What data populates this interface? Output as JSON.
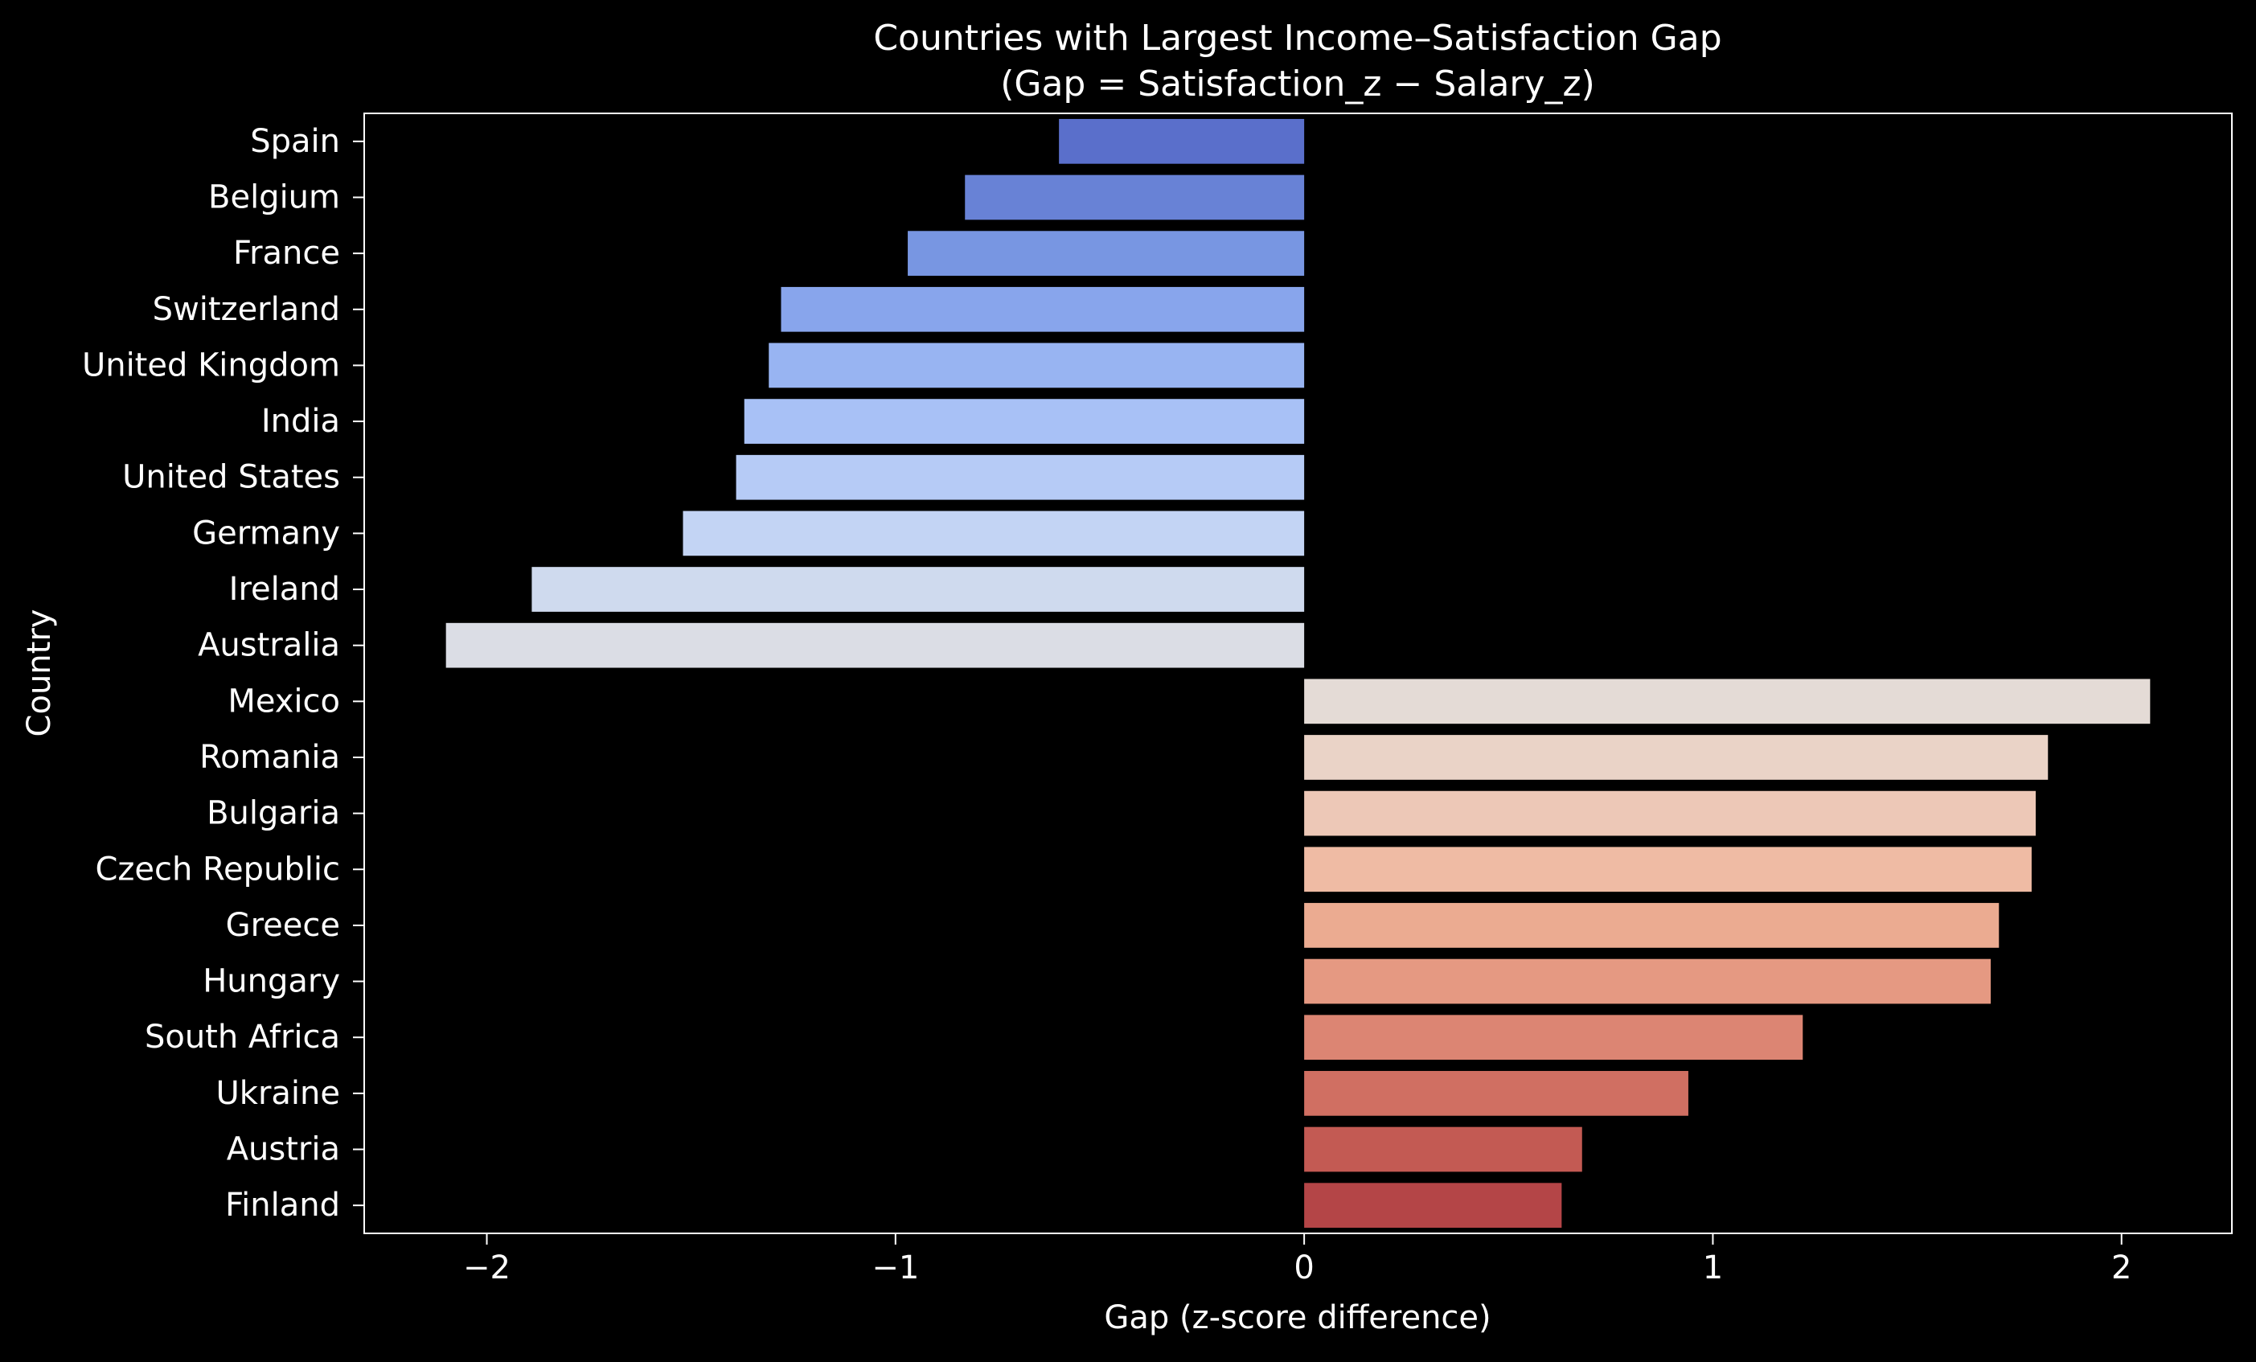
{
  "chart_data": {
    "type": "bar",
    "orientation": "horizontal",
    "title_line1": "Countries with Largest Income–Satisfaction Gap",
    "title_line2": "(Gap = Satisfaction_z − Salary_z)",
    "xlabel": "Gap (z-score difference)",
    "ylabel": "Country",
    "xlim": [
      -2.3,
      2.27
    ],
    "xticks": [
      -2,
      -1,
      0,
      1,
      2
    ],
    "xtick_labels": [
      "−2",
      "−1",
      "0",
      "1",
      "2"
    ],
    "grid": false,
    "legend": "none",
    "background": "#000000",
    "bars": [
      {
        "label": "Spain",
        "value": -0.6,
        "color": "#5a6fcb"
      },
      {
        "label": "Belgium",
        "value": -0.83,
        "color": "#6882d6"
      },
      {
        "label": "France",
        "value": -0.97,
        "color": "#7896e2"
      },
      {
        "label": "Switzerland",
        "value": -1.28,
        "color": "#88a5ec"
      },
      {
        "label": "United Kingdom",
        "value": -1.31,
        "color": "#98b4f2"
      },
      {
        "label": "India",
        "value": -1.37,
        "color": "#a8c1f6"
      },
      {
        "label": "United States",
        "value": -1.39,
        "color": "#b6cbf6"
      },
      {
        "label": "Germany",
        "value": -1.52,
        "color": "#c3d4f4"
      },
      {
        "label": "Ireland",
        "value": -1.89,
        "color": "#cfdaee"
      },
      {
        "label": "Australia",
        "value": -2.1,
        "color": "#dbdde5"
      },
      {
        "label": "Mexico",
        "value": 2.07,
        "color": "#e4dbd6"
      },
      {
        "label": "Romania",
        "value": 1.82,
        "color": "#ead3c7"
      },
      {
        "label": "Bulgaria",
        "value": 1.79,
        "color": "#edc8b7"
      },
      {
        "label": "Czech Republic",
        "value": 1.78,
        "color": "#efbba4"
      },
      {
        "label": "Greece",
        "value": 1.7,
        "color": "#ebab91"
      },
      {
        "label": "Hungary",
        "value": 1.68,
        "color": "#e59982"
      },
      {
        "label": "South Africa",
        "value": 1.22,
        "color": "#dc8573"
      },
      {
        "label": "Ukraine",
        "value": 0.94,
        "color": "#d06f62"
      },
      {
        "label": "Austria",
        "value": 0.68,
        "color": "#c35a53"
      },
      {
        "label": "Finland",
        "value": 0.63,
        "color": "#b44547"
      }
    ]
  }
}
